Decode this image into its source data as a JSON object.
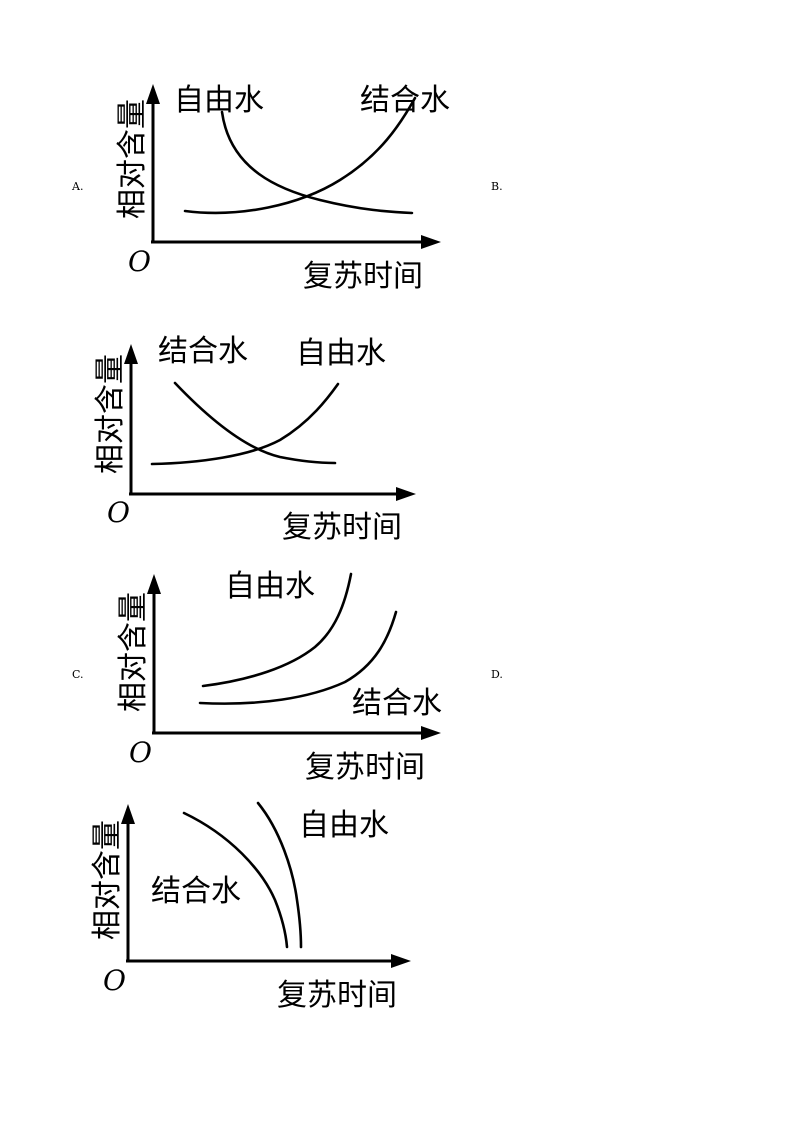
{
  "options": {
    "a": "A.",
    "b": "B.",
    "c": "C.",
    "d": "D."
  },
  "axes": {
    "ylabel": "相对含量",
    "xlabel": "复苏时间",
    "origin": "O"
  },
  "curves": {
    "free_water": "自由水",
    "bound_water": "结合水"
  }
}
